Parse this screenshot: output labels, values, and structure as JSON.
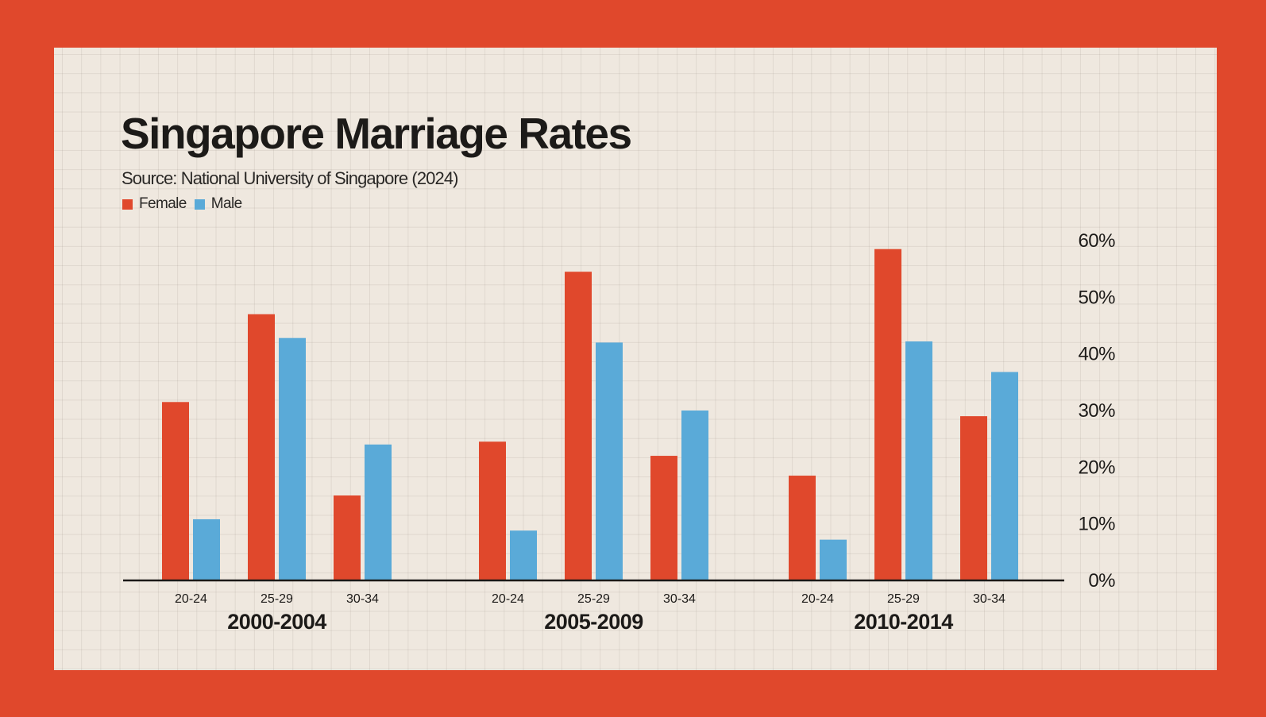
{
  "title": "Singapore Marriage Rates",
  "subtitle": "Source: National University of Singapore (2024)",
  "legend": [
    {
      "label": "Female",
      "color": "#e0482c"
    },
    {
      "label": "Male",
      "color": "#5aaad8"
    }
  ],
  "chart_data": {
    "type": "bar",
    "title": "Singapore Marriage Rates",
    "subtitle": "Source: National University of Singapore (2024)",
    "xlabel": "",
    "ylabel": "",
    "ylim": [
      0,
      60
    ],
    "yticks": [
      "0%",
      "10%",
      "20%",
      "30%",
      "40%",
      "50%",
      "60%"
    ],
    "ytick_values": [
      0,
      10,
      20,
      30,
      40,
      50,
      60
    ],
    "y_axis_position": "right",
    "grid": true,
    "legend_position": "top-left",
    "groups": [
      {
        "label": "2000-2004",
        "categories": [
          "20-24",
          "25-29",
          "30-34"
        ]
      },
      {
        "label": "2005-2009",
        "categories": [
          "20-24",
          "25-29",
          "30-34"
        ]
      },
      {
        "label": "2010-2014",
        "categories": [
          "20-24",
          "25-29",
          "30-34"
        ]
      }
    ],
    "series": [
      {
        "name": "Female",
        "color": "#e0482c",
        "values": [
          [
            31.5,
            47,
            15
          ],
          [
            24.5,
            54.5,
            22
          ],
          [
            18.5,
            58.5,
            29
          ]
        ]
      },
      {
        "name": "Male",
        "color": "#5aaad8",
        "values": [
          [
            10.8,
            42.8,
            24
          ],
          [
            8.8,
            42,
            30
          ],
          [
            7.2,
            42.2,
            36.8
          ]
        ]
      }
    ]
  }
}
